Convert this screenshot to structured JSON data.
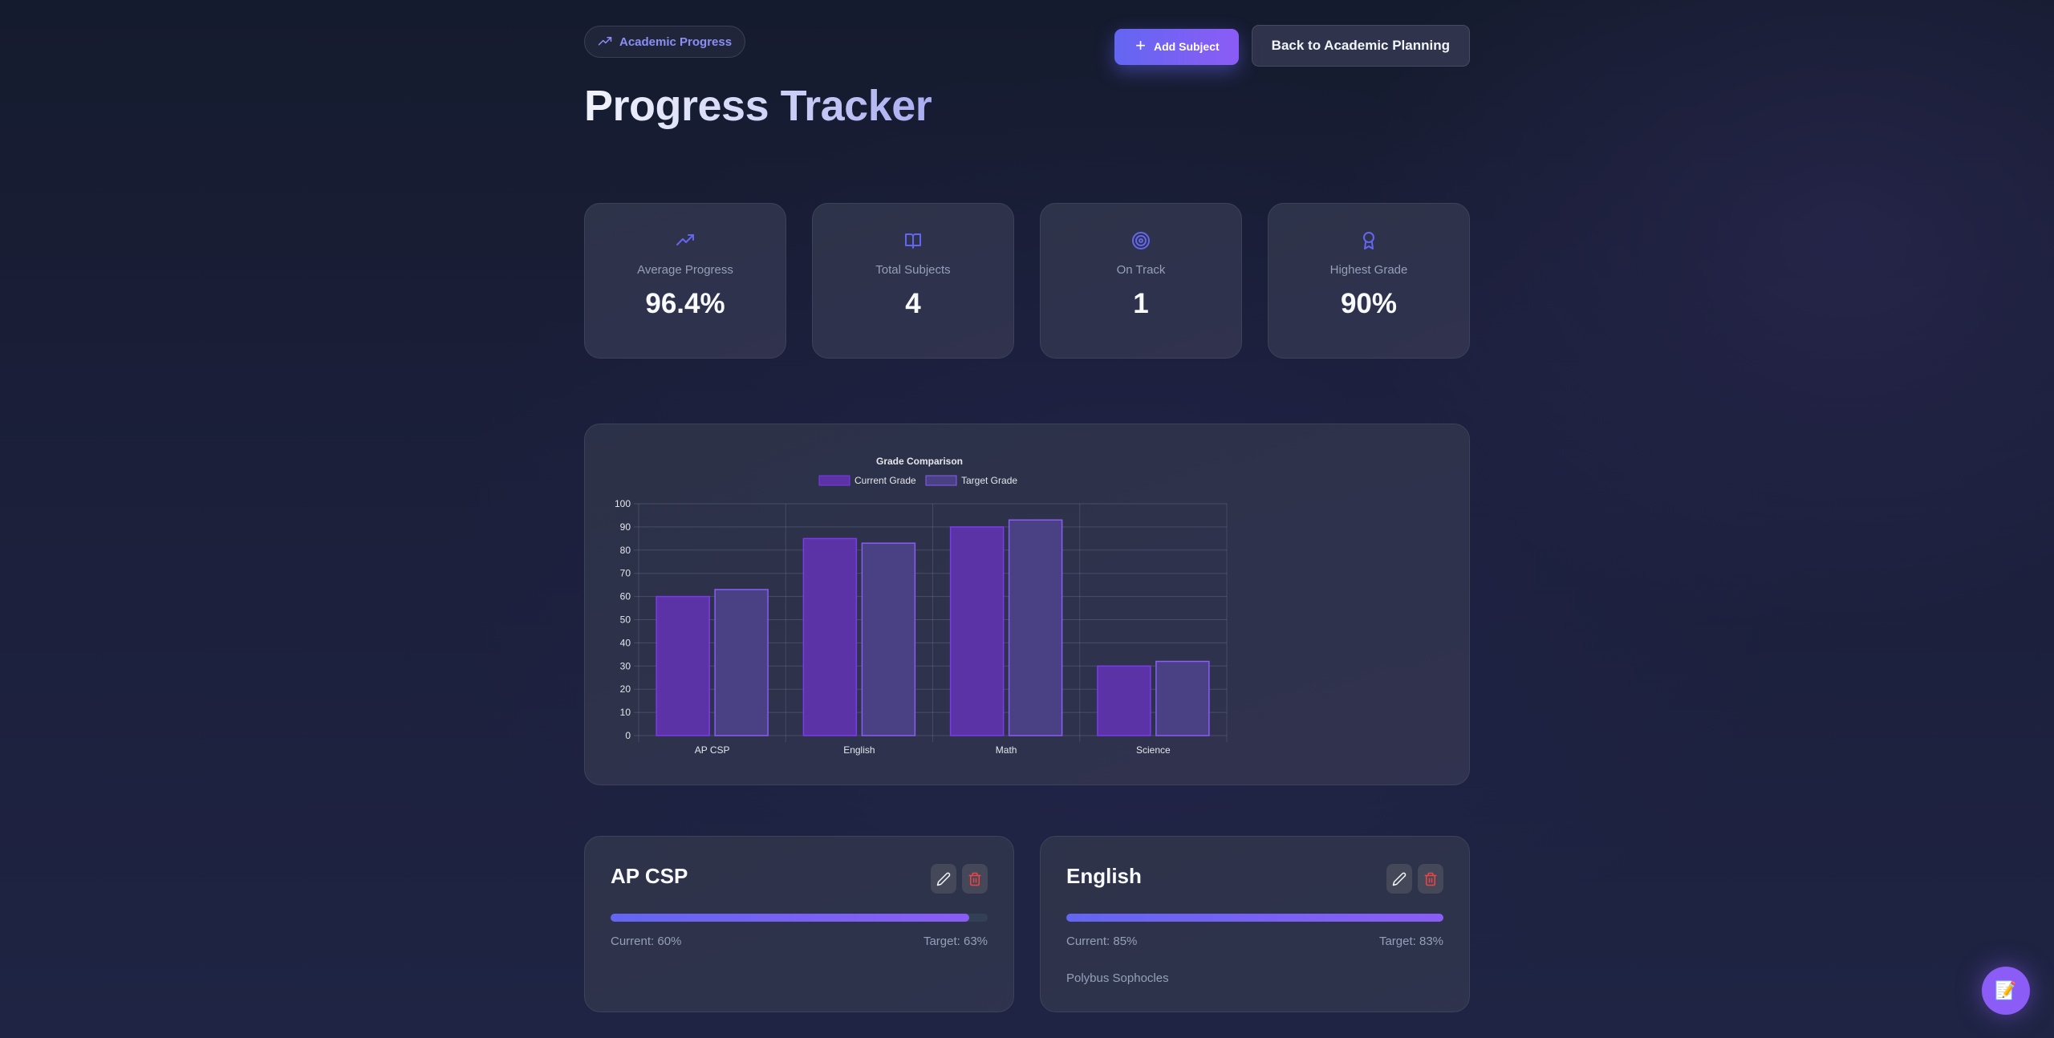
{
  "header": {
    "badge_label": "Academic Progress",
    "badge_icon": "trending-up-icon",
    "title": "Progress Tracker",
    "add_subject_label": "Add Subject",
    "back_label": "Back to Academic Planning"
  },
  "stats": [
    {
      "icon": "trending-up-icon",
      "label": "Average Progress",
      "value": "96.4%"
    },
    {
      "icon": "book-open-icon",
      "label": "Total Subjects",
      "value": "4"
    },
    {
      "icon": "target-icon",
      "label": "On Track",
      "value": "1"
    },
    {
      "icon": "award-icon",
      "label": "Highest Grade",
      "value": "90%"
    }
  ],
  "chart_data": {
    "type": "bar",
    "title": "Grade Comparison",
    "categories": [
      "AP CSP",
      "English",
      "Math",
      "Science"
    ],
    "series": [
      {
        "name": "Current Grade",
        "values": [
          60,
          85,
          90,
          30
        ],
        "color": "#5b33a6",
        "border": "#7c3aed"
      },
      {
        "name": "Target Grade",
        "values": [
          63,
          83,
          93,
          32
        ],
        "color": "#4a4185",
        "border": "#8b5cf6"
      }
    ],
    "xlabel": "",
    "ylabel": "",
    "ylim": [
      0,
      100
    ],
    "yticks": [
      0,
      10,
      20,
      30,
      40,
      50,
      60,
      70,
      80,
      90,
      100
    ],
    "grid": true,
    "legend_position": "top"
  },
  "subjects": [
    {
      "name": "AP CSP",
      "current_label": "Current: 60%",
      "target_label": "Target: 63%",
      "progress_pct": 95.2,
      "note": ""
    },
    {
      "name": "English",
      "current_label": "Current: 85%",
      "target_label": "Target: 83%",
      "progress_pct": 100,
      "note": "Polybus Sophocles"
    }
  ],
  "fab": {
    "icon": "memo-icon",
    "glyph": "📝"
  },
  "colors": {
    "accent": "#6366f1",
    "accent_2": "#8b5cf6",
    "danger": "#ef4444",
    "text_muted": "#94a0b8"
  }
}
